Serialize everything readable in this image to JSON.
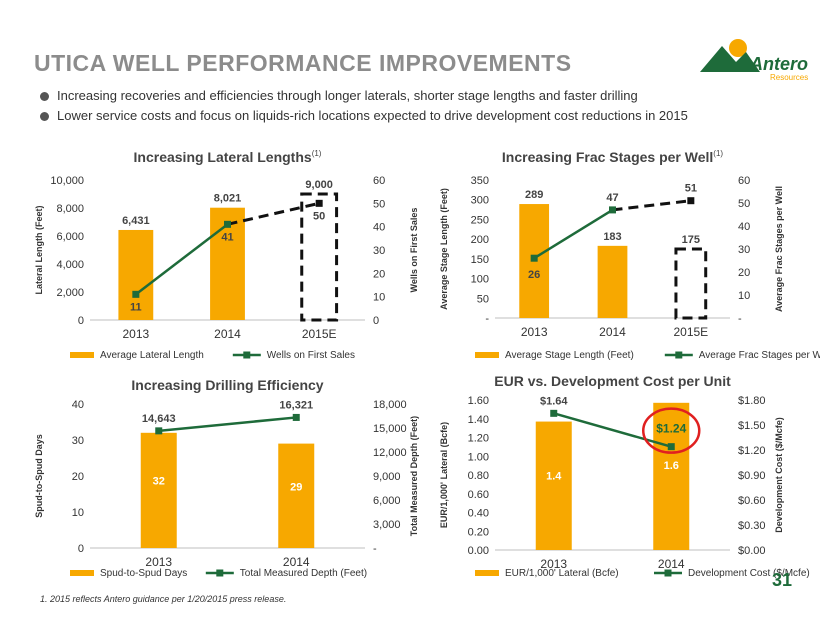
{
  "title": "UTICA WELL PERFORMANCE IMPROVEMENTS",
  "bullets": [
    "Increasing recoveries and efficiencies through longer laterals, shorter stage lengths and faster drilling",
    "Lower service costs and focus on liquids-rich locations expected to drive development cost reductions in 2015"
  ],
  "logo": {
    "name": "Antero",
    "sub": "Resources"
  },
  "footnote": "1.  2015 reflects Antero guidance per 1/20/2015 press release.",
  "page_number": "31",
  "colors": {
    "bar": "#f7a800",
    "line": "#1e6b3a",
    "highlight": "#e02020",
    "title_gray": "#8c8c8c"
  },
  "chart_data": [
    {
      "id": "lateral",
      "type": "bar",
      "title": "Increasing Lateral Lengths",
      "title_sup": "(1)",
      "categories": [
        "2013",
        "2014",
        "2015E"
      ],
      "series": [
        {
          "name": "Average Lateral Length",
          "kind": "bar",
          "axis": "left",
          "values": [
            6431,
            8021,
            9000
          ],
          "labels": [
            "6,431",
            "8,021",
            "9,000"
          ],
          "dashed_index": 2
        },
        {
          "name": "Wells on First Sales",
          "kind": "line",
          "axis": "right",
          "values": [
            11,
            41,
            50
          ],
          "labels": [
            "11",
            "41",
            "50"
          ],
          "dashed_index": 2
        }
      ],
      "ylabel": "Lateral Length (Feet)",
      "y2label": "Wells on First Sales",
      "ylim": [
        0,
        10000
      ],
      "y2lim": [
        0,
        60
      ],
      "yticks": [
        "0",
        "2,000",
        "4,000",
        "6,000",
        "8,000",
        "10,000"
      ],
      "y2ticks": [
        "0",
        "10",
        "20",
        "30",
        "40",
        "50",
        "60"
      ]
    },
    {
      "id": "frac",
      "type": "bar",
      "title": "Increasing Frac Stages per Well",
      "title_sup": "(1)",
      "categories": [
        "2013",
        "2014",
        "2015E"
      ],
      "series": [
        {
          "name": "Average Stage Length (Feet)",
          "kind": "bar",
          "axis": "left",
          "values": [
            289,
            183,
            175
          ],
          "labels": [
            "289",
            "183",
            "175"
          ],
          "dashed_index": 2
        },
        {
          "name": "Average Frac Stages per Well",
          "kind": "line",
          "axis": "right",
          "values": [
            26,
            47,
            51
          ],
          "labels": [
            "26",
            "47",
            "51"
          ],
          "dashed_index": 2
        }
      ],
      "ylabel": "Average Stage Length (Feet)",
      "y2label": "Average Frac Stages per Well",
      "ylim": [
        0,
        350
      ],
      "y2lim": [
        0,
        60
      ],
      "yticks": [
        "-",
        "50",
        "100",
        "150",
        "200",
        "250",
        "300",
        "350"
      ],
      "y2ticks": [
        "-",
        "10",
        "20",
        "30",
        "40",
        "50",
        "60"
      ]
    },
    {
      "id": "drilling",
      "type": "bar",
      "title": "Increasing Drilling Efficiency",
      "title_sup": "",
      "categories": [
        "2013",
        "2014"
      ],
      "series": [
        {
          "name": "Spud-to-Spud Days",
          "kind": "bar",
          "axis": "left",
          "values": [
            32,
            29
          ],
          "labels": [
            "32",
            "29"
          ],
          "dashed_index": -1
        },
        {
          "name": "Total Measured Depth (Feet)",
          "kind": "line",
          "axis": "right",
          "values": [
            14643,
            16321
          ],
          "labels": [
            "14,643",
            "16,321"
          ],
          "dashed_index": -1
        }
      ],
      "ylabel": "Spud-to-Spud Days",
      "y2label": "Total Measured Depth (Feet)",
      "ylim": [
        0,
        40
      ],
      "y2lim": [
        0,
        18000
      ],
      "yticks": [
        "0",
        "10",
        "20",
        "30",
        "40"
      ],
      "y2ticks": [
        "-",
        "3,000",
        "6,000",
        "9,000",
        "12,000",
        "15,000",
        "18,000"
      ]
    },
    {
      "id": "eur",
      "type": "bar",
      "title": "EUR vs. Development Cost per Unit",
      "title_sup": "",
      "categories": [
        "2013",
        "2014"
      ],
      "series": [
        {
          "name": "EUR/1,000' Lateral (Bcfe)",
          "kind": "bar",
          "axis": "left",
          "values": [
            1.37,
            1.57
          ],
          "labels": [
            "1.4",
            "1.6"
          ],
          "dashed_index": -1
        },
        {
          "name": "Development Cost ($/Mcfe)",
          "kind": "line",
          "axis": "right",
          "values": [
            1.64,
            1.24
          ],
          "labels": [
            "$1.64",
            "$1.24"
          ],
          "dashed_index": -1
        }
      ],
      "ylabel": "EUR/1,000' Lateral (Bcfe)",
      "y2label": "Development Cost ($/Mcfe)",
      "ylim": [
        0,
        1.6
      ],
      "y2lim": [
        0,
        1.8
      ],
      "yticks": [
        "0.00",
        "0.20",
        "0.40",
        "0.60",
        "0.80",
        "1.00",
        "1.20",
        "1.40",
        "1.60"
      ],
      "y2ticks": [
        "$0.00",
        "$0.30",
        "$0.60",
        "$0.90",
        "$1.20",
        "$1.50",
        "$1.80"
      ],
      "highlight_index": 1
    }
  ]
}
